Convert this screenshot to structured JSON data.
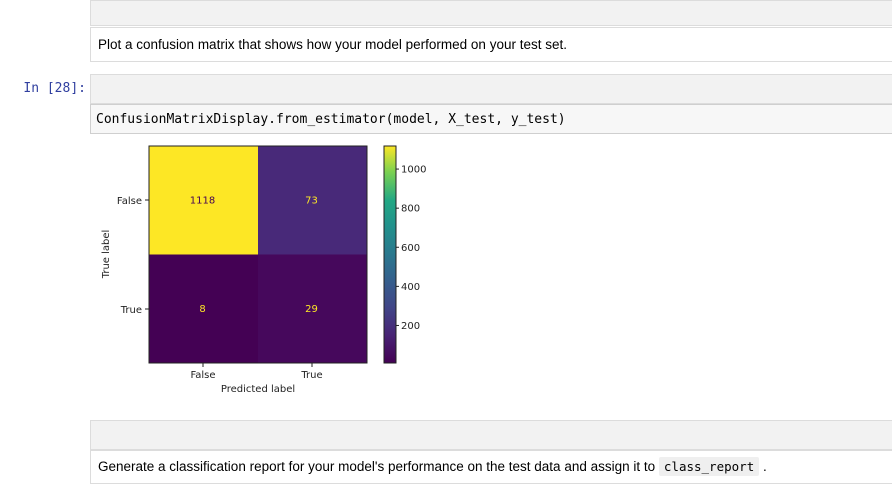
{
  "markdown_1": {
    "text": "Plot a confusion matrix that shows how your model performed on your test set."
  },
  "code_cell": {
    "prompt": "In [28]:",
    "code": "ConfusionMatrixDisplay.from_estimator(model, X_test, y_test)"
  },
  "chart_data": {
    "type": "heatmap",
    "xlabel": "Predicted label",
    "ylabel": "True label",
    "x_categories": [
      "False",
      "True"
    ],
    "y_categories": [
      "False",
      "True"
    ],
    "values": [
      [
        1118,
        73
      ],
      [
        8,
        29
      ]
    ],
    "colormap": "viridis",
    "colorbar": {
      "min": 8,
      "max": 1118,
      "ticks": [
        200,
        400,
        600,
        800,
        1000
      ]
    },
    "colors": {
      "high": "#fde725",
      "cell_73": "#482979",
      "cell_29": "#46085c",
      "low": "#440154",
      "text_on_dark": "#fde725",
      "text_on_light": "#440154"
    }
  },
  "markdown_2": {
    "text_before": "Generate a classification report for your model's performance on the test data and assign it to",
    "code": "class_report",
    "text_after": "."
  }
}
